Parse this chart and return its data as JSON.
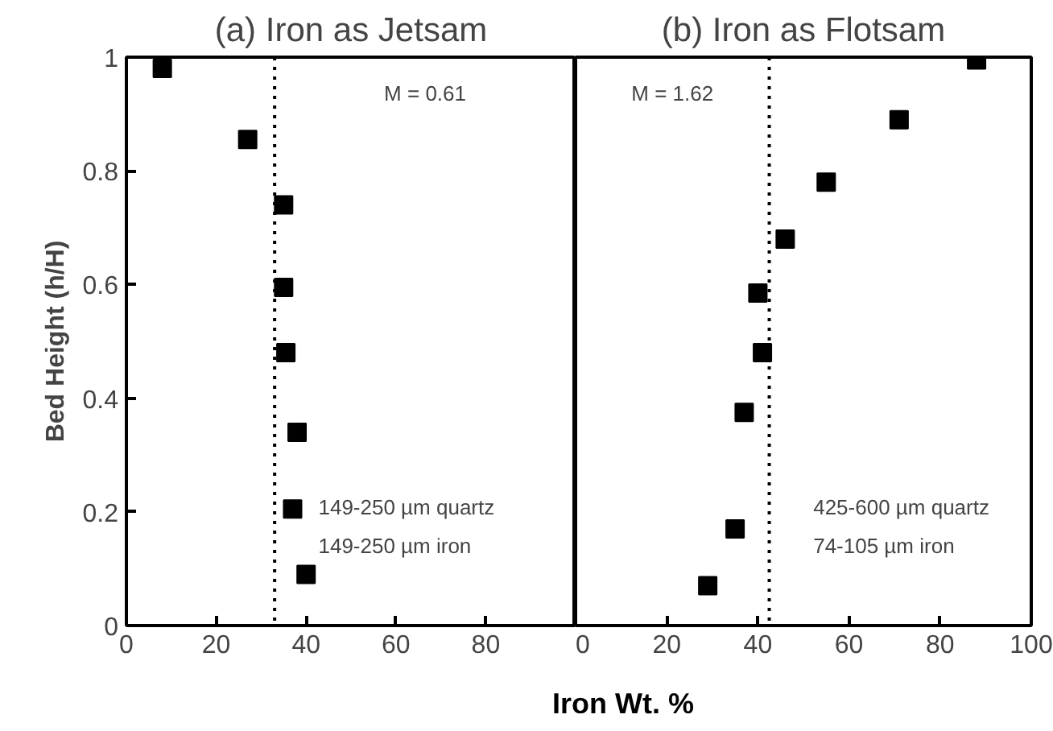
{
  "chart_data": [
    {
      "type": "scatter",
      "title": "(a) Iron as Jetsam",
      "ylabel": "Bed Height (h/H)",
      "xlabel": "Iron Wt. %",
      "marker": "square",
      "x": [
        8,
        27,
        35,
        35,
        35.5,
        38,
        37,
        40
      ],
      "series": [
        {
          "color": "#000000",
          "values": [
            0.98,
            0.855,
            0.74,
            0.595,
            0.48,
            0.34,
            0.205,
            0.09
          ]
        }
      ],
      "xlim": [
        0,
        100
      ],
      "xticks": [
        0,
        20,
        40,
        60,
        80
      ],
      "ylim": [
        0,
        1
      ],
      "yticks": [
        0,
        {
          "value": 0.2,
          "label": "0.2"
        },
        {
          "value": 0.4,
          "label": "0.4"
        },
        {
          "value": 0.6,
          "label": "0.6"
        },
        {
          "value": 0.8,
          "label": "0.8"
        },
        1
      ],
      "ref_lines": [
        {
          "axis": "x",
          "value": 33,
          "line_style": "dotted"
        }
      ],
      "annotations": [
        "M = 0.61",
        "149-250 µm quartz",
        "149-250 µm iron"
      ]
    },
    {
      "type": "scatter",
      "title": "(b) Iron as Flotsam",
      "marker": "square",
      "tick_labels": "x",
      "x": [
        29,
        35,
        37,
        41,
        40,
        46,
        55,
        71,
        88
      ],
      "series": [
        {
          "color": "#000000",
          "values": [
            0.07,
            0.17,
            0.375,
            0.48,
            0.585,
            0.68,
            0.78,
            0.89,
            0.995
          ]
        }
      ],
      "xlim": [
        0,
        100
      ],
      "xticks": [
        0,
        20,
        40,
        60,
        80,
        100
      ],
      "ylim": [
        0,
        1
      ],
      "yticks": [
        0,
        0.2,
        0.4,
        0.6,
        0.8,
        1
      ],
      "ref_lines": [
        {
          "axis": "x",
          "value": 42.5,
          "line_style": "dotted"
        }
      ],
      "annotations": [
        "M = 1.62",
        "425-600 µm quartz",
        "74-105 µm iron"
      ]
    }
  ]
}
